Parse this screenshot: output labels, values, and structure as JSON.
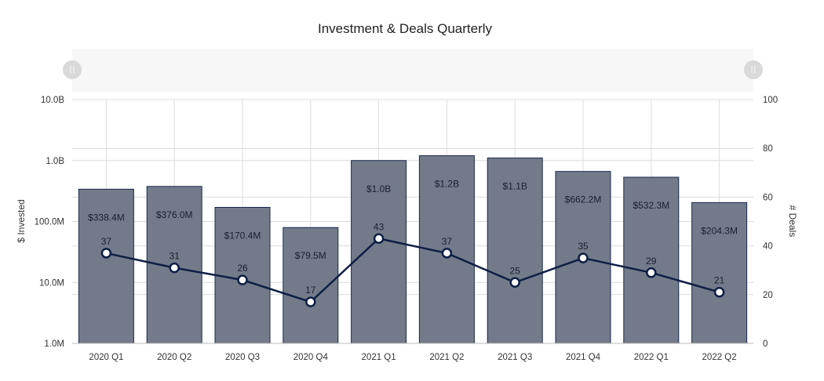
{
  "chart_data": {
    "type": "bar+line",
    "title": "Investment & Deals Quarterly",
    "categories": [
      "2020 Q1",
      "2020 Q2",
      "2020 Q3",
      "2020 Q4",
      "2021 Q1",
      "2021 Q2",
      "2021 Q3",
      "2021 Q4",
      "2022 Q1",
      "2022 Q2"
    ],
    "series": [
      {
        "type": "bar",
        "axis": "left",
        "values": [
          338400000.0,
          376000000.0,
          170400000.0,
          79500000.0,
          1000000000.0,
          1200000000.0,
          1100000000.0,
          662200000.0,
          532300000.0,
          204300000.0
        ],
        "labels": [
          "$338.4M",
          "$376.0M",
          "$170.4M",
          "$79.5M",
          "$1.0B",
          "$1.2B",
          "$1.1B",
          "$662.2M",
          "$532.3M",
          "$204.3M"
        ],
        "color": "#737b8a",
        "stroke": "#1a2a4f"
      },
      {
        "type": "line",
        "axis": "right",
        "values": [
          37,
          31,
          26,
          17,
          43,
          37,
          25,
          35,
          29,
          21
        ],
        "color": "#0e1f45"
      }
    ],
    "left_axis": {
      "label": "$ Invested",
      "scale": "log",
      "range": [
        1000000.0,
        10000000000.0
      ],
      "ticks": [
        "1.0M",
        "10.0M",
        "100.0M",
        "1.0B",
        "10.0B"
      ]
    },
    "right_axis": {
      "label": "# Deals",
      "scale": "linear",
      "range": [
        0,
        100
      ],
      "ticks": [
        "0",
        "20",
        "40",
        "60",
        "80",
        "100"
      ]
    },
    "grid": true,
    "range_selector": true
  }
}
